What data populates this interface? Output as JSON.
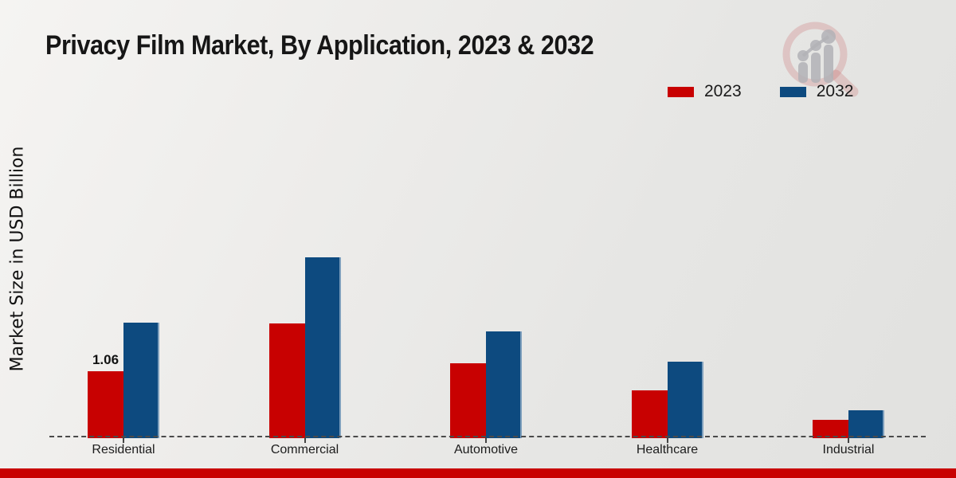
{
  "page": {
    "title": "Privacy Film Market, By Application, 2023 & 2032",
    "footer_color": "#c80101"
  },
  "legend": {
    "items": [
      {
        "label": "2023",
        "color": "#c80101"
      },
      {
        "label": "2032",
        "color": "#0d4a7f"
      }
    ]
  },
  "watermark_icon": "magnifier-bar-chart-logo",
  "chart_data": {
    "type": "bar",
    "title": "Privacy Film Market, By Application, 2023 & 2032",
    "xlabel": "",
    "ylabel": "Market Size in USD Billion",
    "categories": [
      "Residential",
      "Commercial",
      "Automotive",
      "Healthcare",
      "Industrial"
    ],
    "series": [
      {
        "name": "2023",
        "color": "#c80101",
        "values": [
          1.06,
          1.82,
          1.19,
          0.76,
          0.29
        ]
      },
      {
        "name": "2032",
        "color": "#0d4a7f",
        "values": [
          1.83,
          2.86,
          1.69,
          1.21,
          0.44
        ]
      }
    ],
    "bar_labels": [
      {
        "series": 0,
        "category": 0,
        "text": "1.06"
      }
    ],
    "ylim": [
      0,
      3.2
    ],
    "grid": false,
    "axis_style": "dashed-baseline-only",
    "legend_position": "top-right"
  }
}
